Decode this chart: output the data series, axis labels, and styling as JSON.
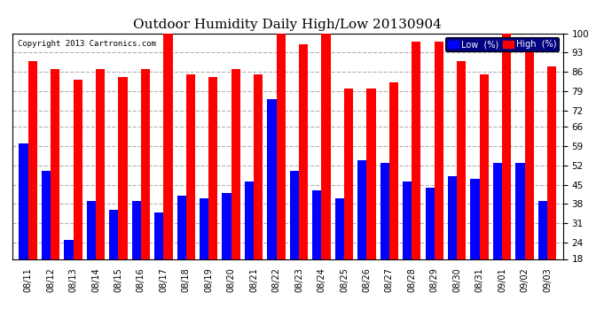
{
  "title": "Outdoor Humidity Daily High/Low 20130904",
  "copyright": "Copyright 2013 Cartronics.com",
  "dates": [
    "08/11",
    "08/12",
    "08/13",
    "08/14",
    "08/15",
    "08/16",
    "08/17",
    "08/18",
    "08/19",
    "08/20",
    "08/21",
    "08/22",
    "08/23",
    "08/24",
    "08/25",
    "08/26",
    "08/27",
    "08/28",
    "08/29",
    "08/30",
    "08/31",
    "09/01",
    "09/02",
    "09/03"
  ],
  "highs": [
    90,
    87,
    83,
    87,
    84,
    87,
    100,
    85,
    84,
    87,
    85,
    100,
    96,
    100,
    80,
    80,
    82,
    97,
    97,
    90,
    85,
    100,
    93,
    88
  ],
  "lows": [
    60,
    50,
    25,
    39,
    36,
    39,
    35,
    41,
    40,
    42,
    46,
    76,
    50,
    43,
    40,
    54,
    53,
    46,
    44,
    48,
    47,
    53,
    53,
    39
  ],
  "high_color": "#ff0000",
  "low_color": "#0000ff",
  "bg_color": "#ffffff",
  "grid_color": "#b0b0b0",
  "title_fontsize": 11,
  "yticks": [
    18,
    24,
    31,
    38,
    45,
    52,
    59,
    66,
    72,
    79,
    86,
    93,
    100
  ],
  "ymin": 18,
  "ymax": 100
}
